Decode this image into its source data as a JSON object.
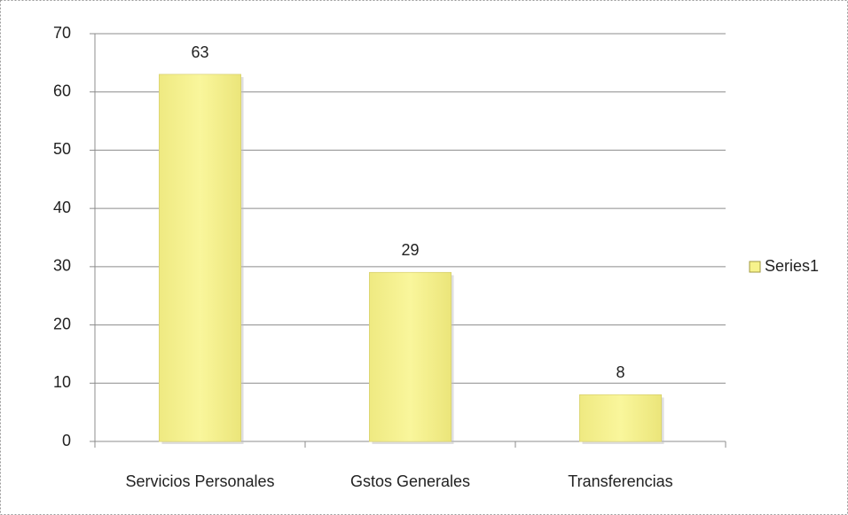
{
  "chart_data": {
    "type": "bar",
    "categories": [
      "Servicios Personales",
      "Gstos Generales",
      "Transferencias"
    ],
    "series": [
      {
        "name": "Series1",
        "color": "#f7f38c",
        "values": [
          63,
          29,
          8
        ]
      }
    ],
    "ylim": [
      0,
      70
    ],
    "yticks": [
      0,
      10,
      20,
      30,
      40,
      50,
      60,
      70
    ],
    "grid": true,
    "legend": "right"
  }
}
